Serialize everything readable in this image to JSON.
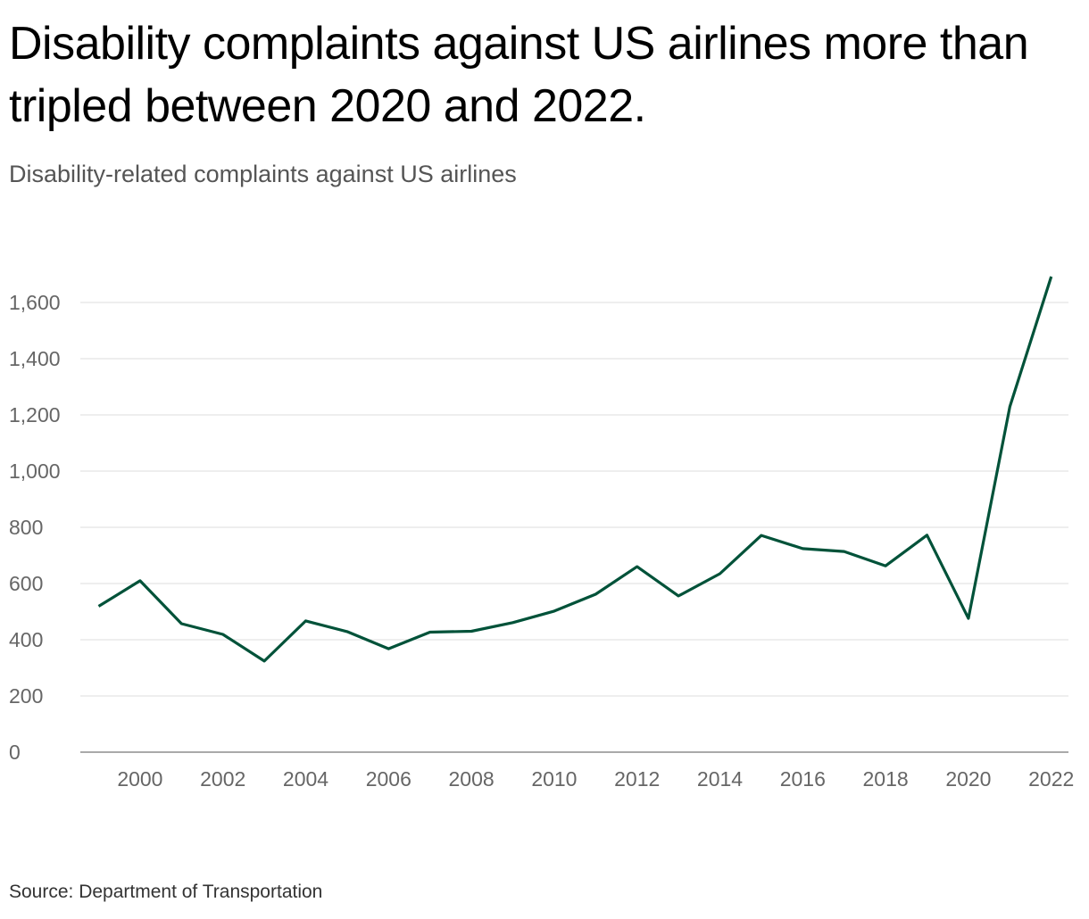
{
  "title": "Disability complaints against US airlines more than tripled between 2020 and 2022.",
  "subtitle": "Disability-related complaints against US airlines",
  "source": "Source: Department of Transportation",
  "chart_data": {
    "type": "line",
    "title": "Disability complaints against US airlines more than tripled between 2020 and 2022.",
    "subtitle": "Disability-related complaints against US airlines",
    "x": [
      1999,
      2000,
      2001,
      2002,
      2003,
      2004,
      2005,
      2006,
      2007,
      2008,
      2009,
      2010,
      2011,
      2012,
      2013,
      2014,
      2015,
      2016,
      2017,
      2018,
      2019,
      2020,
      2021,
      2022
    ],
    "series": [
      {
        "values": [
          519,
          610,
          457,
          419,
          324,
          467,
          429,
          368,
          427,
          430,
          461,
          502,
          562,
          660,
          556,
          635,
          771,
          724,
          714,
          663,
          772,
          476,
          1229,
          1692
        ],
        "color": "#005239"
      }
    ],
    "xticks": [
      "2000",
      "2002",
      "2004",
      "2006",
      "2008",
      "2010",
      "2012",
      "2014",
      "2016",
      "2018",
      "2020",
      "2022"
    ],
    "yticks": [
      "0",
      "200",
      "400",
      "600",
      "800",
      "1,000",
      "1,200",
      "1,400",
      "1,600"
    ],
    "ylim": [
      0,
      1700
    ],
    "xlim": [
      1999,
      2022
    ],
    "grid": "horizontal",
    "xlabel": "",
    "ylabel": ""
  }
}
